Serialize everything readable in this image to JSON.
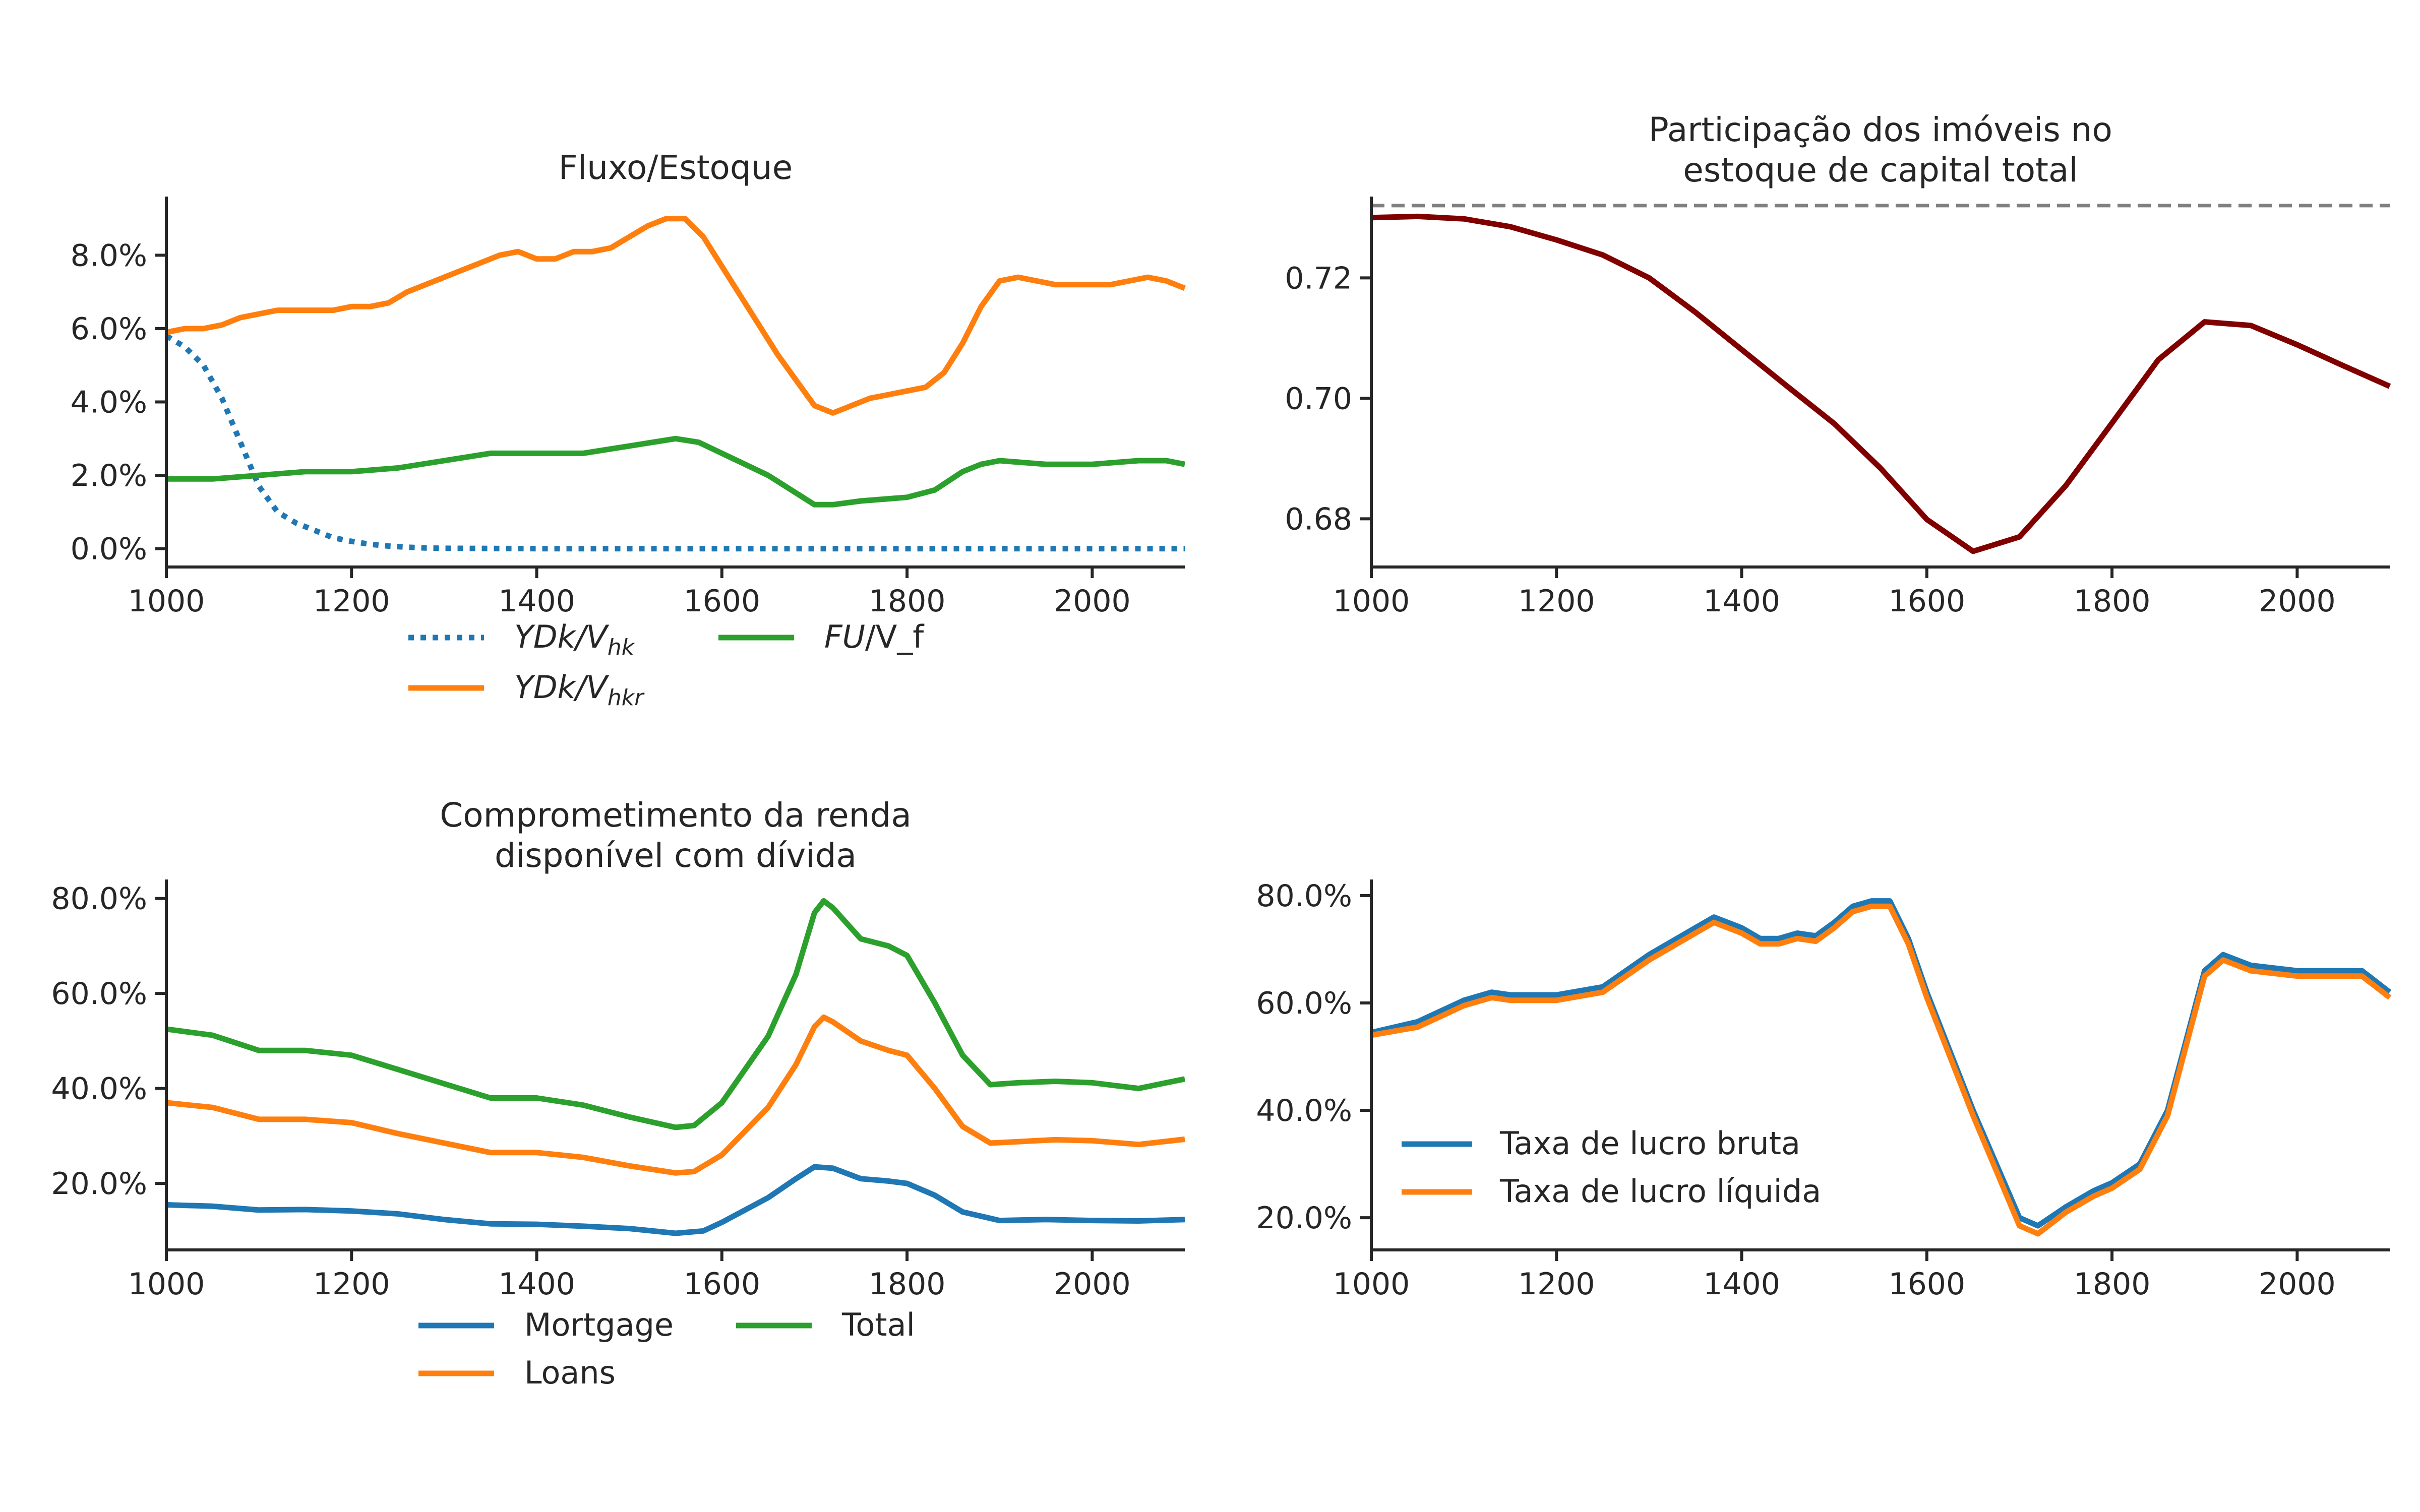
{
  "chart_data": [
    {
      "type": "line",
      "title": "Fluxo/Estoque",
      "xlabel": "",
      "ylabel": "",
      "xlim": [
        1000,
        2100
      ],
      "ylim": [
        -0.005,
        0.096
      ],
      "xticks": [
        1000,
        1200,
        1400,
        1600,
        1800,
        2000
      ],
      "yticks": [
        0.0,
        0.02,
        0.04,
        0.06,
        0.08
      ],
      "ytick_format": "percent1",
      "legend_position": "below",
      "series": [
        {
          "name": "YDk/V_hk",
          "legend_main": "YDk/V",
          "legend_sub": "hk",
          "color": "#1f77b4",
          "dash": "dotted",
          "x": [
            1000,
            1020,
            1040,
            1060,
            1080,
            1100,
            1120,
            1140,
            1160,
            1180,
            1200,
            1220,
            1240,
            1260,
            1280,
            1300,
            1400,
            1500,
            1600,
            1700,
            1800,
            1900,
            2000,
            2100
          ],
          "y": [
            0.058,
            0.055,
            0.05,
            0.041,
            0.029,
            0.017,
            0.01,
            0.007,
            0.005,
            0.003,
            0.002,
            0.0012,
            0.0007,
            0.0004,
            0.0002,
            0.0001,
            0.0,
            0.0,
            0.0,
            0.0,
            0.0,
            0.0,
            0.0,
            0.0
          ]
        },
        {
          "name": "YDk/V_hkr",
          "legend_main": "YDk/V",
          "legend_sub": "hkr",
          "color": "#ff7f0e",
          "dash": "solid",
          "x": [
            1000,
            1020,
            1040,
            1060,
            1080,
            1100,
            1120,
            1140,
            1160,
            1180,
            1200,
            1220,
            1240,
            1260,
            1280,
            1300,
            1320,
            1340,
            1360,
            1380,
            1400,
            1420,
            1440,
            1460,
            1480,
            1500,
            1520,
            1540,
            1560,
            1580,
            1600,
            1620,
            1640,
            1660,
            1680,
            1700,
            1720,
            1740,
            1760,
            1780,
            1800,
            1820,
            1840,
            1860,
            1880,
            1900,
            1920,
            1940,
            1960,
            1980,
            2000,
            2020,
            2040,
            2060,
            2080,
            2100
          ],
          "y": [
            0.059,
            0.06,
            0.06,
            0.061,
            0.063,
            0.064,
            0.065,
            0.065,
            0.065,
            0.065,
            0.066,
            0.066,
            0.067,
            0.07,
            0.072,
            0.074,
            0.076,
            0.078,
            0.08,
            0.081,
            0.079,
            0.079,
            0.081,
            0.081,
            0.082,
            0.085,
            0.088,
            0.09,
            0.09,
            0.085,
            0.077,
            0.069,
            0.061,
            0.053,
            0.046,
            0.039,
            0.037,
            0.039,
            0.041,
            0.042,
            0.043,
            0.044,
            0.048,
            0.056,
            0.066,
            0.073,
            0.074,
            0.073,
            0.072,
            0.072,
            0.072,
            0.072,
            0.073,
            0.074,
            0.073,
            0.071
          ]
        },
        {
          "name": "FU/V_f",
          "legend_main": "FU",
          "legend_rest": "/V_f",
          "color": "#2ca02c",
          "dash": "solid",
          "x": [
            1000,
            1050,
            1100,
            1150,
            1200,
            1250,
            1300,
            1350,
            1400,
            1450,
            1500,
            1550,
            1575,
            1600,
            1650,
            1700,
            1720,
            1750,
            1800,
            1830,
            1860,
            1880,
            1900,
            1950,
            2000,
            2050,
            2080,
            2100
          ],
          "y": [
            0.019,
            0.019,
            0.02,
            0.021,
            0.021,
            0.022,
            0.024,
            0.026,
            0.026,
            0.026,
            0.028,
            0.03,
            0.029,
            0.026,
            0.02,
            0.012,
            0.012,
            0.013,
            0.014,
            0.016,
            0.021,
            0.023,
            0.024,
            0.023,
            0.023,
            0.024,
            0.024,
            0.023
          ]
        }
      ]
    },
    {
      "type": "line",
      "title": "Participação dos imóveis no\nestoque de capital total",
      "title_lines": [
        "Participação dos imóveis no",
        "estoque de capital total"
      ],
      "xlabel": "",
      "ylabel": "",
      "xlim": [
        1000,
        2100
      ],
      "ylim": [
        0.672,
        0.7335
      ],
      "xticks": [
        1000,
        1200,
        1400,
        1600,
        1800,
        2000
      ],
      "yticks": [
        0.68,
        0.7,
        0.72
      ],
      "ytick_format": "fixed2",
      "hline": {
        "y": 0.732,
        "color": "#808080",
        "dash": "dashed"
      },
      "series": [
        {
          "name": "",
          "color": "#800000",
          "dash": "solid",
          "x": [
            1000,
            1050,
            1100,
            1150,
            1200,
            1250,
            1300,
            1350,
            1400,
            1450,
            1500,
            1550,
            1600,
            1650,
            1700,
            1750,
            1800,
            1850,
            1900,
            1950,
            2000,
            2050,
            2100
          ],
          "y": [
            0.73,
            0.7302,
            0.7298,
            0.7285,
            0.7263,
            0.7238,
            0.72,
            0.7143,
            0.7081,
            0.7019,
            0.6958,
            0.6884,
            0.6799,
            0.6746,
            0.677,
            0.6855,
            0.6959,
            0.7064,
            0.7127,
            0.7121,
            0.7089,
            0.7054,
            0.702
          ]
        }
      ]
    },
    {
      "type": "line",
      "title": "Comprometimento da renda\ndisponível com dívida",
      "title_lines": [
        "Comprometimento da renda",
        "disponível com dívida"
      ],
      "xlabel": "",
      "ylabel": "",
      "xlim": [
        1000,
        2100
      ],
      "ylim": [
        0.06,
        0.84
      ],
      "xticks": [
        1000,
        1200,
        1400,
        1600,
        1800,
        2000
      ],
      "yticks": [
        0.2,
        0.4,
        0.6,
        0.8
      ],
      "ytick_format": "percent1",
      "legend_position": "below",
      "series": [
        {
          "name": "Mortgage",
          "color": "#1f77b4",
          "dash": "solid",
          "x": [
            1000,
            1050,
            1100,
            1150,
            1200,
            1250,
            1300,
            1350,
            1400,
            1450,
            1500,
            1550,
            1580,
            1600,
            1650,
            1680,
            1700,
            1720,
            1750,
            1780,
            1800,
            1830,
            1860,
            1900,
            1950,
            2000,
            2050,
            2100
          ],
          "y": [
            0.155,
            0.152,
            0.144,
            0.145,
            0.142,
            0.136,
            0.124,
            0.115,
            0.114,
            0.11,
            0.105,
            0.095,
            0.1,
            0.118,
            0.17,
            0.21,
            0.235,
            0.232,
            0.21,
            0.205,
            0.2,
            0.175,
            0.14,
            0.122,
            0.124,
            0.122,
            0.121,
            0.124
          ]
        },
        {
          "name": "Loans",
          "color": "#ff7f0e",
          "dash": "solid",
          "x": [
            1000,
            1050,
            1100,
            1150,
            1200,
            1250,
            1300,
            1350,
            1400,
            1450,
            1500,
            1550,
            1570,
            1600,
            1650,
            1680,
            1700,
            1710,
            1720,
            1750,
            1780,
            1800,
            1830,
            1860,
            1890,
            1920,
            1960,
            2000,
            2050,
            2100
          ],
          "y": [
            0.37,
            0.36,
            0.335,
            0.335,
            0.328,
            0.305,
            0.285,
            0.265,
            0.265,
            0.255,
            0.237,
            0.222,
            0.225,
            0.26,
            0.36,
            0.45,
            0.53,
            0.55,
            0.54,
            0.5,
            0.48,
            0.47,
            0.4,
            0.32,
            0.285,
            0.288,
            0.292,
            0.29,
            0.282,
            0.293
          ]
        },
        {
          "name": "Total",
          "color": "#2ca02c",
          "dash": "solid",
          "x": [
            1000,
            1050,
            1100,
            1150,
            1200,
            1250,
            1300,
            1350,
            1400,
            1450,
            1500,
            1550,
            1570,
            1600,
            1650,
            1680,
            1700,
            1710,
            1720,
            1750,
            1780,
            1800,
            1830,
            1860,
            1890,
            1920,
            1960,
            2000,
            2050,
            2100
          ],
          "y": [
            0.525,
            0.512,
            0.48,
            0.48,
            0.47,
            0.44,
            0.41,
            0.38,
            0.38,
            0.365,
            0.34,
            0.318,
            0.322,
            0.37,
            0.51,
            0.64,
            0.77,
            0.795,
            0.78,
            0.715,
            0.7,
            0.68,
            0.58,
            0.47,
            0.408,
            0.412,
            0.415,
            0.412,
            0.4,
            0.42
          ]
        }
      ]
    },
    {
      "type": "line",
      "title": "",
      "xlabel": "",
      "ylabel": "",
      "xlim": [
        1000,
        2100
      ],
      "ylim": [
        0.14,
        0.83
      ],
      "xticks": [
        1000,
        1200,
        1400,
        1600,
        1800,
        2000
      ],
      "yticks": [
        0.2,
        0.4,
        0.6,
        0.8
      ],
      "ytick_format": "percent1",
      "legend_position": "lower-left",
      "series": [
        {
          "name": "Taxa de lucro bruta",
          "color": "#1f77b4",
          "dash": "solid",
          "x": [
            1000,
            1050,
            1100,
            1130,
            1150,
            1200,
            1250,
            1300,
            1350,
            1370,
            1400,
            1420,
            1440,
            1460,
            1480,
            1500,
            1520,
            1540,
            1560,
            1580,
            1600,
            1650,
            1700,
            1720,
            1750,
            1780,
            1800,
            1830,
            1860,
            1880,
            1900,
            1920,
            1950,
            2000,
            2050,
            2070,
            2100
          ],
          "y": [
            0.545,
            0.565,
            0.605,
            0.62,
            0.615,
            0.615,
            0.63,
            0.69,
            0.74,
            0.76,
            0.74,
            0.72,
            0.72,
            0.73,
            0.725,
            0.75,
            0.78,
            0.79,
            0.79,
            0.72,
            0.62,
            0.4,
            0.2,
            0.185,
            0.22,
            0.25,
            0.265,
            0.3,
            0.4,
            0.53,
            0.66,
            0.69,
            0.67,
            0.66,
            0.66,
            0.66,
            0.62
          ]
        },
        {
          "name": "Taxa de lucro líquida",
          "color": "#ff7f0e",
          "dash": "solid",
          "x": [
            1000,
            1050,
            1100,
            1130,
            1150,
            1200,
            1250,
            1300,
            1350,
            1370,
            1400,
            1420,
            1440,
            1460,
            1480,
            1500,
            1520,
            1540,
            1560,
            1580,
            1600,
            1650,
            1700,
            1720,
            1750,
            1780,
            1800,
            1830,
            1860,
            1880,
            1900,
            1920,
            1950,
            2000,
            2050,
            2070,
            2100
          ],
          "y": [
            0.54,
            0.555,
            0.595,
            0.61,
            0.605,
            0.605,
            0.62,
            0.68,
            0.73,
            0.75,
            0.73,
            0.71,
            0.71,
            0.72,
            0.715,
            0.74,
            0.77,
            0.78,
            0.78,
            0.71,
            0.61,
            0.39,
            0.185,
            0.17,
            0.21,
            0.24,
            0.255,
            0.29,
            0.39,
            0.52,
            0.65,
            0.68,
            0.66,
            0.65,
            0.65,
            0.65,
            0.61
          ]
        }
      ]
    }
  ]
}
